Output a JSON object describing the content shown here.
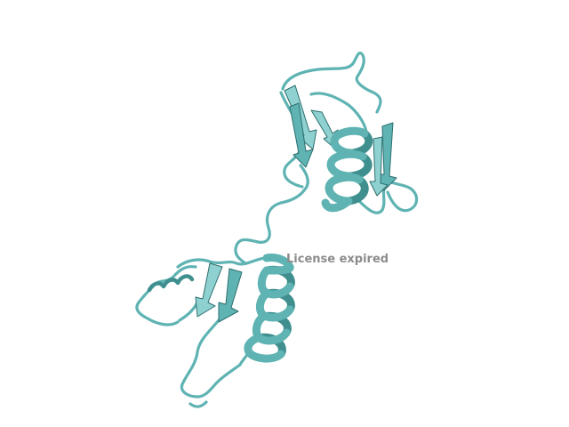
{
  "viewer": {
    "watermark_text": "License expired",
    "watermark_color": "#8c8c8c",
    "background_color": "#ffffff"
  },
  "structure": {
    "ribbon_fill": "#5fb3b3",
    "ribbon_dark": "#3f8f8f",
    "ribbon_light": "#8fd0d0",
    "outline": "#2e6f6f"
  }
}
